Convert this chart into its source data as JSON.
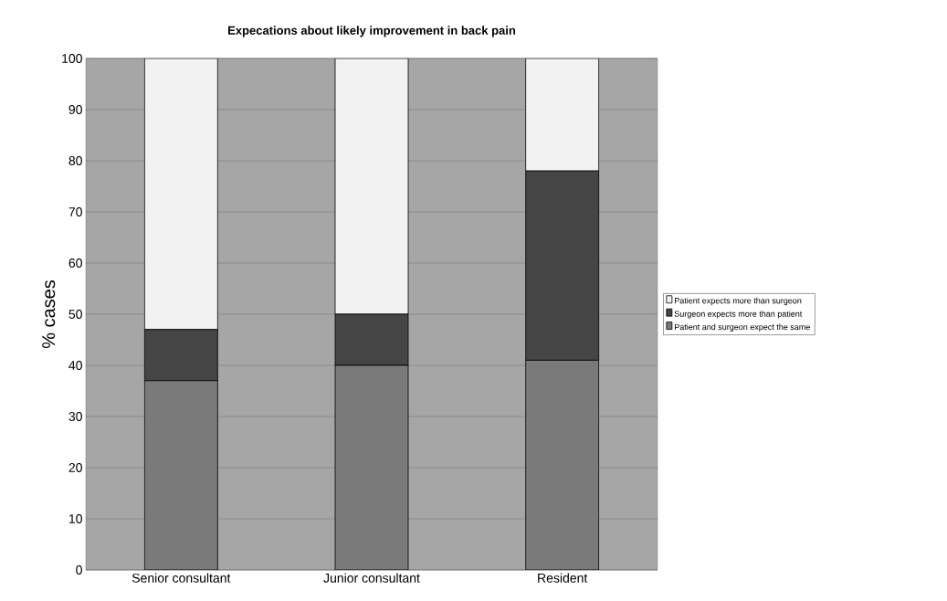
{
  "chart_data": {
    "type": "bar",
    "stacked": true,
    "title": "Expecations about likely improvement in back pain",
    "ylabel": "% cases",
    "categories": [
      "Senior consultant",
      "Junior consultant",
      "Resident"
    ],
    "series": [
      {
        "name": "Patient and surgeon expect the same",
        "color": "#7a7a7a",
        "values": [
          37,
          40,
          41
        ]
      },
      {
        "name": "Surgeon expects more than patient",
        "color": "#454545",
        "values": [
          10,
          10,
          37
        ]
      },
      {
        "name": "Patient expects more than surgeon",
        "color": "#f2f2f2",
        "values": [
          53,
          50,
          22
        ]
      }
    ],
    "ylim": [
      0,
      100
    ],
    "yticks": [
      0,
      10,
      20,
      30,
      40,
      50,
      60,
      70,
      80,
      90,
      100
    ],
    "grid": "y",
    "legend": "right"
  }
}
